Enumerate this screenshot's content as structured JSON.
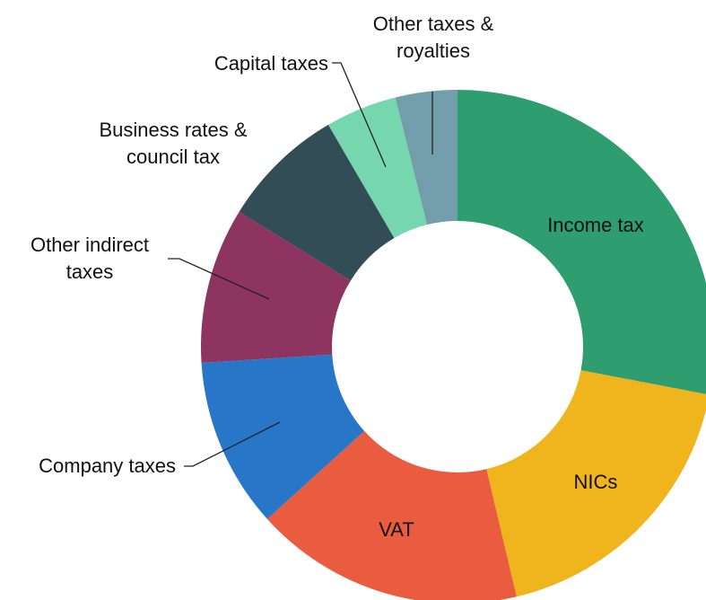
{
  "chart_data": {
    "type": "pie",
    "categories": [
      "Income tax",
      "NICs",
      "VAT",
      "Company taxes",
      "Other indirect taxes",
      "Business rates & council tax",
      "Capital taxes",
      "Other taxes & royalties"
    ],
    "values": [
      28,
      18.3,
      17,
      10.7,
      9.8,
      7.8,
      4.5,
      3.9
    ],
    "colors": [
      "#2e9e70",
      "#f0b41c",
      "#e95c40",
      "#2876c8",
      "#8e3461",
      "#324d55",
      "#76d6ae",
      "#739eab"
    ]
  }
}
